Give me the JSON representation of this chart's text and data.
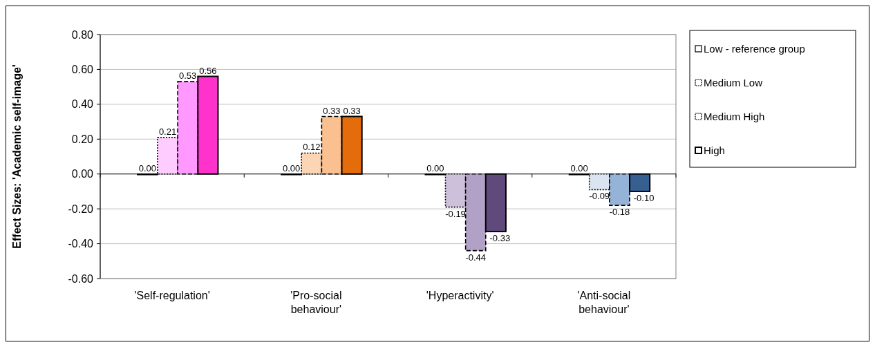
{
  "chart_data": {
    "type": "bar",
    "ylabel": "Effect Sizes: 'Academic self-image'",
    "categories": [
      "'Self-regulation'",
      "'Pro-social behaviour'",
      "'Hyperactivity'",
      "'Anti-social behaviour'"
    ],
    "series": [
      {
        "name": "Low - reference group",
        "color": "#ffffff",
        "line_style": "solid",
        "colors": [
          "#ffccff",
          "#fcd5b5",
          "#ccc0da",
          "#dbe5f1"
        ],
        "values": [
          0.0,
          0.0,
          0.0,
          0.0
        ],
        "value_labels": [
          "0.00",
          "0.00",
          "0.00",
          "0.00"
        ]
      },
      {
        "name": "Medium Low",
        "color": "#ffffff",
        "line_style": "dotted",
        "colors": [
          "#ffccff",
          "#fcd5b5",
          "#ccc0da",
          "#dbe5f1"
        ],
        "values": [
          0.21,
          0.12,
          -0.19,
          -0.09
        ],
        "value_labels": [
          "0.21",
          "0.12",
          "-0.19",
          "-0.09"
        ]
      },
      {
        "name": "Medium High",
        "color": "#ffffff",
        "line_style": "dashed",
        "colors": [
          "#ff99ff",
          "#fac090",
          "#b2a1c7",
          "#95b3d7"
        ],
        "values": [
          0.53,
          0.33,
          -0.44,
          -0.18
        ],
        "value_labels": [
          "0.53",
          "0.33",
          "-0.44",
          "-0.18"
        ]
      },
      {
        "name": "High",
        "color": "#ffffff",
        "line_style": "solid",
        "colors": [
          "#ff33cc",
          "#e46c0a",
          "#604a7b",
          "#366092"
        ],
        "values": [
          0.56,
          0.33,
          -0.33,
          -0.1
        ],
        "value_labels": [
          "0.56",
          "0.33",
          "-0.33",
          "-0.10"
        ]
      }
    ],
    "ylim": [
      -0.6,
      0.8
    ],
    "yticks": [
      {
        "value": -0.6,
        "label": "-0.60"
      },
      {
        "value": -0.4,
        "label": "-0.40"
      },
      {
        "value": -0.2,
        "label": "-0.20"
      },
      {
        "value": 0,
        "label": "0.00"
      },
      {
        "value": 0.2,
        "label": "0.20"
      },
      {
        "value": 0.4,
        "label": "0.40"
      },
      {
        "value": 0.6,
        "label": "0.60"
      },
      {
        "value": 0.8,
        "label": "0.80"
      }
    ],
    "grid": "y",
    "legend": "right"
  }
}
